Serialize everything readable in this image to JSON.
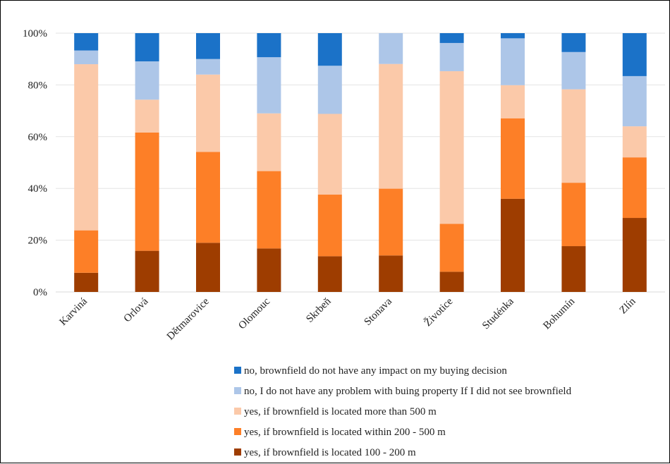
{
  "chart_data": {
    "type": "bar",
    "stacked": true,
    "percent_stacked": true,
    "categories": [
      "Karviná",
      "Orlová",
      "Dětmarovice",
      "Olomouc",
      "Skrbeň",
      "Stonava",
      "Životice",
      "Studénka",
      "Bohumín",
      "Zlín"
    ],
    "y_ticks": [
      "0%",
      "20%",
      "40%",
      "60%",
      "80%",
      "100%"
    ],
    "ylim": [
      0,
      100
    ],
    "grid": true,
    "legend_position": "bottom",
    "series": [
      {
        "name": "yes, if brownfield is located 100 - 200 m",
        "color": "#9e3d00",
        "values": [
          7.4,
          15.9,
          19.0,
          16.8,
          13.8,
          14.1,
          7.8,
          36.0,
          17.7,
          28.6
        ]
      },
      {
        "name": "yes, if brownfield is located within 200 - 500 m",
        "color": "#fd7f27",
        "values": [
          16.4,
          45.7,
          35.1,
          29.9,
          23.8,
          25.8,
          18.5,
          31.1,
          24.5,
          23.4
        ]
      },
      {
        "name": "yes, if brownfield is located more than 500 m",
        "color": "#fbc9a9",
        "values": [
          64.2,
          12.7,
          29.9,
          22.3,
          31.2,
          48.2,
          59.0,
          12.8,
          36.1,
          12.0
        ]
      },
      {
        "name": "no, I do not have any problem with buing property If I did not see brownfield",
        "color": "#adc6e8",
        "values": [
          5.3,
          14.8,
          6.0,
          21.7,
          18.6,
          11.9,
          10.9,
          18.1,
          14.4,
          19.4
        ]
      },
      {
        "name": "no, brownfield do not have any impact on my buying decision",
        "color": "#1b72c8",
        "values": [
          6.7,
          10.9,
          10.0,
          9.3,
          12.6,
          0.0,
          3.8,
          2.0,
          7.3,
          16.6
        ]
      }
    ],
    "legend_order": [
      4,
      3,
      2,
      1,
      0
    ]
  }
}
